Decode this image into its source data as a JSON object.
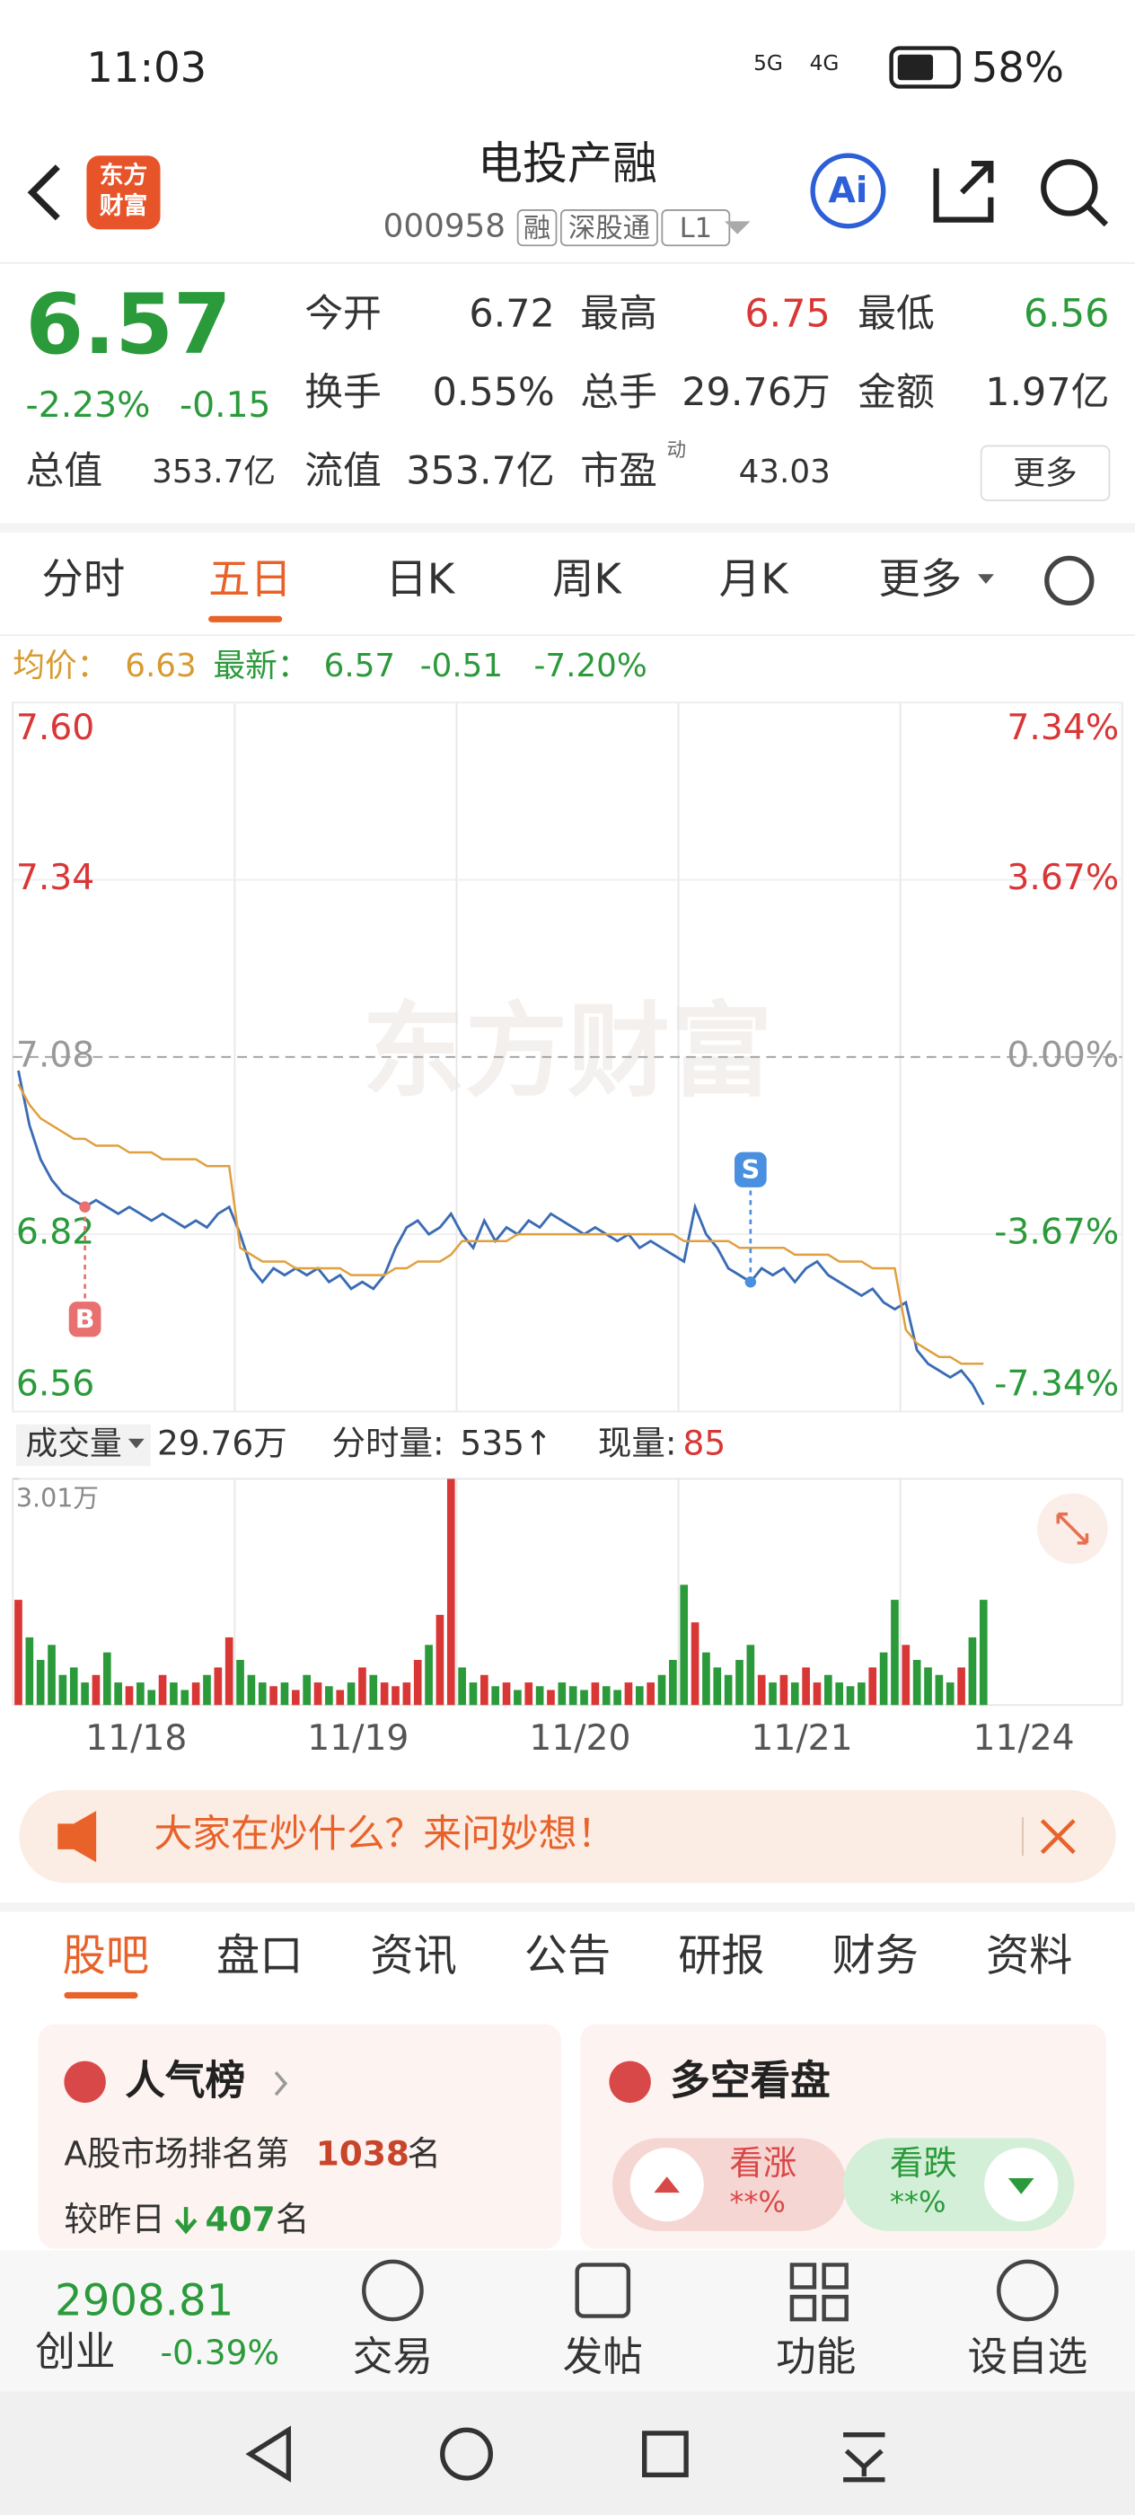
{
  "status_bar": {
    "time": "11:03",
    "network": [
      "5G",
      "4G"
    ],
    "battery": "58%"
  },
  "header": {
    "logo": [
      "东方",
      "财富"
    ],
    "name": "电投产融",
    "code": "000958",
    "tags": [
      "融",
      "深股通",
      "L1"
    ],
    "ai": "Ai"
  },
  "quote": {
    "price": "6.57",
    "change_pct": "-2.23%",
    "change": "-0.15",
    "fields": [
      {
        "label": "今开",
        "value": "6.72"
      },
      {
        "label": "最高",
        "value": "6.75"
      },
      {
        "label": "最低",
        "value": "6.56"
      },
      {
        "label": "换手",
        "value": "0.55%"
      },
      {
        "label": "总手",
        "value": "29.76万"
      },
      {
        "label": "金额",
        "value": "1.97亿"
      },
      {
        "label": "总值",
        "value": "353.7亿"
      },
      {
        "label": "流值",
        "value": "353.7亿"
      },
      {
        "label": "市盈",
        "sup": "动",
        "value": "43.03"
      }
    ],
    "more": "更多"
  },
  "tabs": [
    "分时",
    "五日",
    "日K",
    "周K",
    "月K",
    "更多"
  ],
  "summary": {
    "avg_label": "均价：",
    "avg": "6.63",
    "last_label": "最新：",
    "last": "6.57",
    "change": "-0.51",
    "change_pct": "-7.20%"
  },
  "chart_data": [
    {
      "type": "line",
      "watermark": "东方财富",
      "markers": [
        "B",
        "S"
      ],
      "days": [
        "11/18",
        "11/19",
        "11/20",
        "11/21",
        "11/24"
      ],
      "ylim": [
        6.56,
        7.6
      ],
      "yticks": [
        6.56,
        6.82,
        7.08,
        7.34,
        {
          "value": 7.6,
          "label": "7.60"
        }
      ],
      "y2lim": [
        -7.34,
        7.34
      ],
      "y2ticks": [
        {
          "value": -7.34,
          "label": "-7.34%"
        },
        {
          "value": -3.67,
          "label": "-3.67%"
        },
        {
          "value": 0,
          "label": "0.00%"
        },
        {
          "value": 3.67,
          "label": "3.67%"
        },
        {
          "value": 7.34,
          "label": "7.34%"
        }
      ],
      "series": [
        {
          "color": "#3a6cb4",
          "values": [
            7.06,
            6.98,
            6.93,
            6.9,
            6.88,
            6.87,
            6.86,
            6.87,
            6.86,
            6.85,
            6.86,
            6.85,
            6.84,
            6.85,
            6.84,
            6.83,
            6.84,
            6.83,
            6.85,
            6.86,
            6.82,
            6.77,
            6.75,
            6.77,
            6.76,
            6.77,
            6.76,
            6.77,
            6.75,
            6.76,
            6.74,
            6.75,
            6.74,
            6.76,
            6.8,
            6.83,
            6.84,
            6.82,
            6.83,
            6.85,
            6.82,
            6.8,
            6.84,
            6.81,
            6.83,
            6.82,
            6.84,
            6.83,
            6.85,
            6.84,
            6.83,
            6.82,
            6.83,
            6.82,
            6.81,
            6.82,
            6.8,
            6.81,
            6.8,
            6.79,
            6.78,
            6.86,
            6.82,
            6.8,
            6.77,
            6.76,
            6.75,
            6.77,
            6.76,
            6.77,
            6.75,
            6.77,
            6.78,
            6.76,
            6.75,
            6.74,
            6.73,
            6.74,
            6.72,
            6.71,
            6.72,
            6.65,
            6.63,
            6.62,
            6.61,
            6.62,
            6.6,
            6.57,
            null,
            null,
            null,
            null,
            null,
            null,
            null,
            null,
            null,
            null,
            null,
            null
          ]
        },
        {
          "color": "#e0a040",
          "values": [
            7.04,
            7.01,
            6.99,
            6.98,
            6.97,
            6.96,
            6.96,
            6.95,
            6.95,
            6.95,
            6.94,
            6.94,
            6.94,
            6.93,
            6.93,
            6.93,
            6.93,
            6.92,
            6.92,
            6.92,
            6.8,
            6.79,
            6.78,
            6.78,
            6.78,
            6.77,
            6.77,
            6.77,
            6.77,
            6.77,
            6.76,
            6.76,
            6.76,
            6.76,
            6.77,
            6.77,
            6.78,
            6.78,
            6.78,
            6.79,
            6.81,
            6.81,
            6.81,
            6.81,
            6.81,
            6.82,
            6.82,
            6.82,
            6.82,
            6.82,
            6.82,
            6.82,
            6.82,
            6.82,
            6.82,
            6.82,
            6.82,
            6.82,
            6.82,
            6.82,
            6.81,
            6.81,
            6.81,
            6.81,
            6.81,
            6.8,
            6.8,
            6.8,
            6.8,
            6.8,
            6.79,
            6.79,
            6.79,
            6.79,
            6.78,
            6.78,
            6.78,
            6.77,
            6.77,
            6.77,
            6.68,
            6.66,
            6.65,
            6.64,
            6.64,
            6.63,
            6.63,
            6.63,
            null,
            null,
            null,
            null,
            null,
            null,
            null,
            null,
            null,
            null,
            null,
            null
          ]
        }
      ]
    },
    {
      "type": "bar",
      "label": "成交量",
      "total": "29.76万",
      "minute_label": "分时量:",
      "minute_value": "535↑",
      "current_label": "现量:",
      "current_value": "85",
      "ylim": [
        0,
        30100
      ],
      "yticks": [
        {
          "value": 30100,
          "label": "3.01万"
        }
      ],
      "values": [
        14000,
        9000,
        6000,
        8000,
        4000,
        5000,
        3000,
        4000,
        7000,
        3000,
        2500,
        3000,
        2000,
        4000,
        3000,
        2000,
        3000,
        4000,
        5000,
        9000,
        6000,
        4000,
        3000,
        2500,
        3000,
        2000,
        4000,
        3000,
        2500,
        2000,
        3000,
        5000,
        4000,
        3000,
        2500,
        3000,
        6000,
        8000,
        12000,
        30100,
        5000,
        3000,
        4000,
        2500,
        3000,
        2000,
        3000,
        2500,
        2000,
        3000,
        2500,
        2000,
        3000,
        2500,
        2000,
        3000,
        2500,
        3000,
        4000,
        6000,
        16000,
        11000,
        7000,
        5000,
        4000,
        6000,
        8000,
        4000,
        3000,
        4000,
        3000,
        5000,
        3000,
        4000,
        3000,
        2500,
        3000,
        5000,
        7000,
        14000,
        8000,
        6000,
        5000,
        4000,
        3000,
        5000,
        9000,
        14000,
        null,
        null,
        null,
        null,
        null,
        null,
        null,
        null,
        null,
        null,
        null,
        null
      ]
    }
  ],
  "banner": "大家在炒什么？来问妙想！",
  "sub_tabs": [
    "股吧",
    "盘口",
    "资讯",
    "公告",
    "研报",
    "财务",
    "资料"
  ],
  "cards": {
    "popular": {
      "title": "人气榜",
      "rank_prefix": "A股市场排名第",
      "rank": "1038",
      "rank_suffix": "名",
      "change_prefix": "较昨日",
      "change": "407",
      "change_suffix": "名"
    },
    "sentiment": {
      "title": "多空看盘",
      "up": "看涨",
      "up_value": "**%",
      "down": "看跌",
      "down_value": "**%"
    }
  },
  "bottom_nav": {
    "index_value": "2908.81",
    "index_name": "创业",
    "index_change": "-0.39%",
    "items": [
      "交易",
      "发帖",
      "功能",
      "设自选"
    ]
  }
}
